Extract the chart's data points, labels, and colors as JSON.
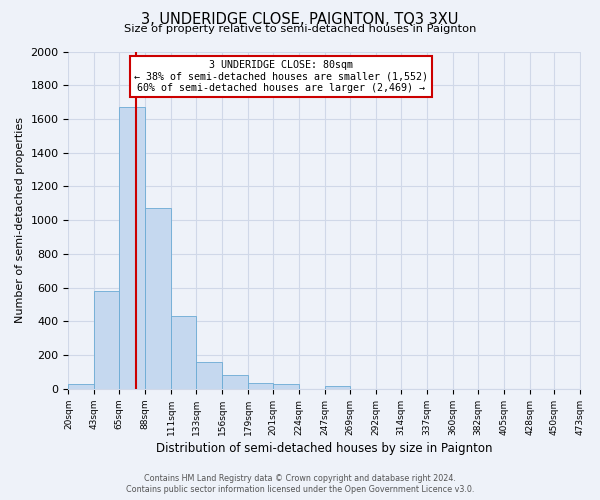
{
  "title": "3, UNDERIDGE CLOSE, PAIGNTON, TQ3 3XU",
  "subtitle": "Size of property relative to semi-detached houses in Paignton",
  "xlabel": "Distribution of semi-detached houses by size in Paignton",
  "ylabel": "Number of semi-detached properties",
  "bin_edges": [
    20,
    43,
    65,
    88,
    111,
    133,
    156,
    179,
    201,
    224,
    247,
    269,
    292,
    314,
    337,
    360,
    382,
    405,
    428,
    450,
    473
  ],
  "bar_heights": [
    30,
    580,
    1670,
    1070,
    430,
    160,
    85,
    35,
    30,
    0,
    15,
    0,
    0,
    0,
    0,
    0,
    0,
    0,
    0,
    0
  ],
  "bar_color": "#c5d8ef",
  "bar_edge_color": "#6aaad4",
  "property_size": 80,
  "property_line_color": "#cc0000",
  "annotation_text": "3 UNDERIDGE CLOSE: 80sqm\n← 38% of semi-detached houses are smaller (1,552)\n60% of semi-detached houses are larger (2,469) →",
  "annotation_box_color": "#ffffff",
  "annotation_box_edge": "#cc0000",
  "ylim": [
    0,
    2000
  ],
  "tick_labels": [
    "20sqm",
    "43sqm",
    "65sqm",
    "88sqm",
    "111sqm",
    "133sqm",
    "156sqm",
    "179sqm",
    "201sqm",
    "224sqm",
    "247sqm",
    "269sqm",
    "292sqm",
    "314sqm",
    "337sqm",
    "360sqm",
    "382sqm",
    "405sqm",
    "428sqm",
    "450sqm",
    "473sqm"
  ],
  "yticks": [
    0,
    200,
    400,
    600,
    800,
    1000,
    1200,
    1400,
    1600,
    1800,
    2000
  ],
  "footer_line1": "Contains HM Land Registry data © Crown copyright and database right 2024.",
  "footer_line2": "Contains public sector information licensed under the Open Government Licence v3.0.",
  "background_color": "#eef2f9",
  "plot_bg_color": "#eef2f9",
  "grid_color": "#d0d8e8"
}
